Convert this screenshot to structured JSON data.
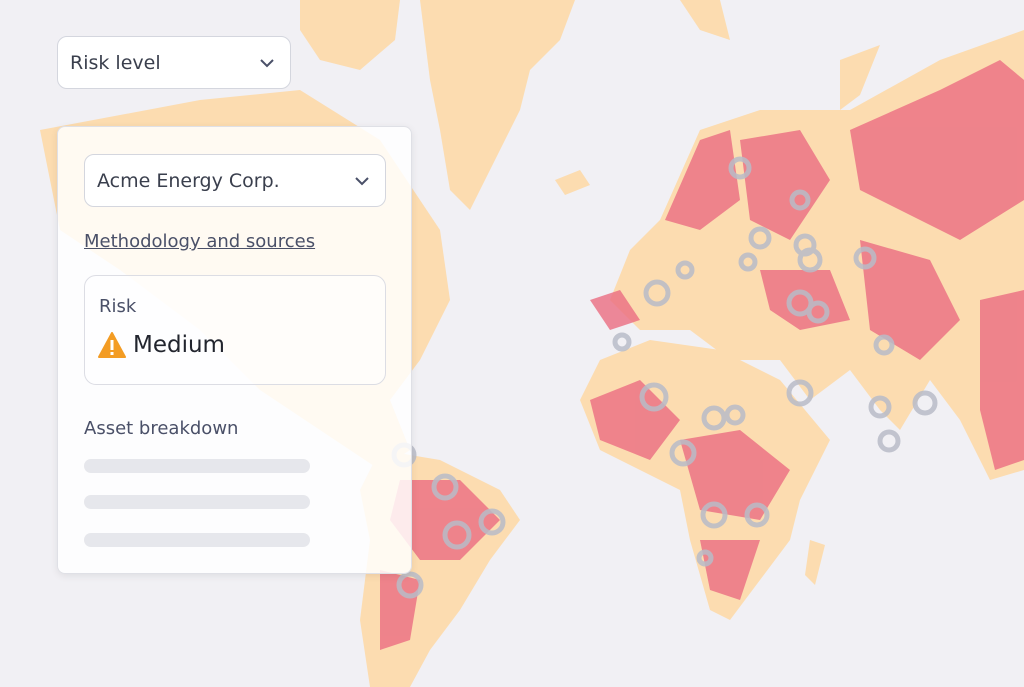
{
  "filters": {
    "layer_select": "Risk level",
    "company_select": "Acme Energy Corp."
  },
  "panel": {
    "methodology_link": "Methodology and sources",
    "risk_card": {
      "label": "Risk",
      "level": "Medium"
    },
    "asset_breakdown": {
      "title": "Asset breakdown"
    }
  }
}
